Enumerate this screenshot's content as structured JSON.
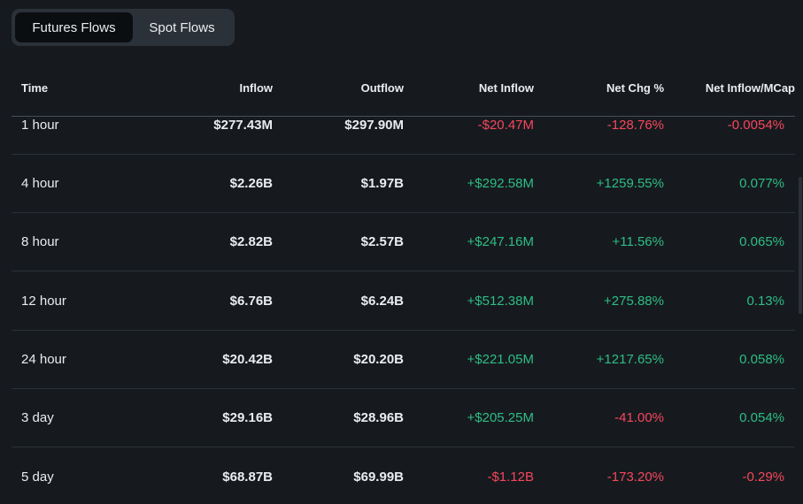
{
  "tabs": [
    {
      "label": "Futures Flows",
      "active": true
    },
    {
      "label": "Spot Flows",
      "active": false
    }
  ],
  "columns": [
    "Time",
    "Inflow",
    "Outflow",
    "Net Inflow",
    "Net Chg %",
    "Net Inflow/MCap"
  ],
  "rows": [
    {
      "time": "1 hour",
      "inflow": "$277.43M",
      "outflow": "$297.90M",
      "net_inflow": "-$20.47M",
      "net_chg": "-128.76%",
      "mcap": "-0.0054%"
    },
    {
      "time": "4 hour",
      "inflow": "$2.26B",
      "outflow": "$1.97B",
      "net_inflow": "+$292.58M",
      "net_chg": "+1259.55%",
      "mcap": "0.077%"
    },
    {
      "time": "8 hour",
      "inflow": "$2.82B",
      "outflow": "$2.57B",
      "net_inflow": "+$247.16M",
      "net_chg": "+11.56%",
      "mcap": "0.065%"
    },
    {
      "time": "12 hour",
      "inflow": "$6.76B",
      "outflow": "$6.24B",
      "net_inflow": "+$512.38M",
      "net_chg": "+275.88%",
      "mcap": "0.13%"
    },
    {
      "time": "24 hour",
      "inflow": "$20.42B",
      "outflow": "$20.20B",
      "net_inflow": "+$221.05M",
      "net_chg": "+1217.65%",
      "mcap": "0.058%"
    },
    {
      "time": "3 day",
      "inflow": "$29.16B",
      "outflow": "$28.96B",
      "net_inflow": "+$205.25M",
      "net_chg": "-41.00%",
      "mcap": "0.054%"
    },
    {
      "time": "5 day",
      "inflow": "$68.87B",
      "outflow": "$69.99B",
      "net_inflow": "-$1.12B",
      "net_chg": "-173.20%",
      "mcap": "-0.29%"
    }
  ],
  "colors": {
    "positive": "#2ebd85",
    "negative": "#f6465d",
    "background": "#161a1e"
  }
}
